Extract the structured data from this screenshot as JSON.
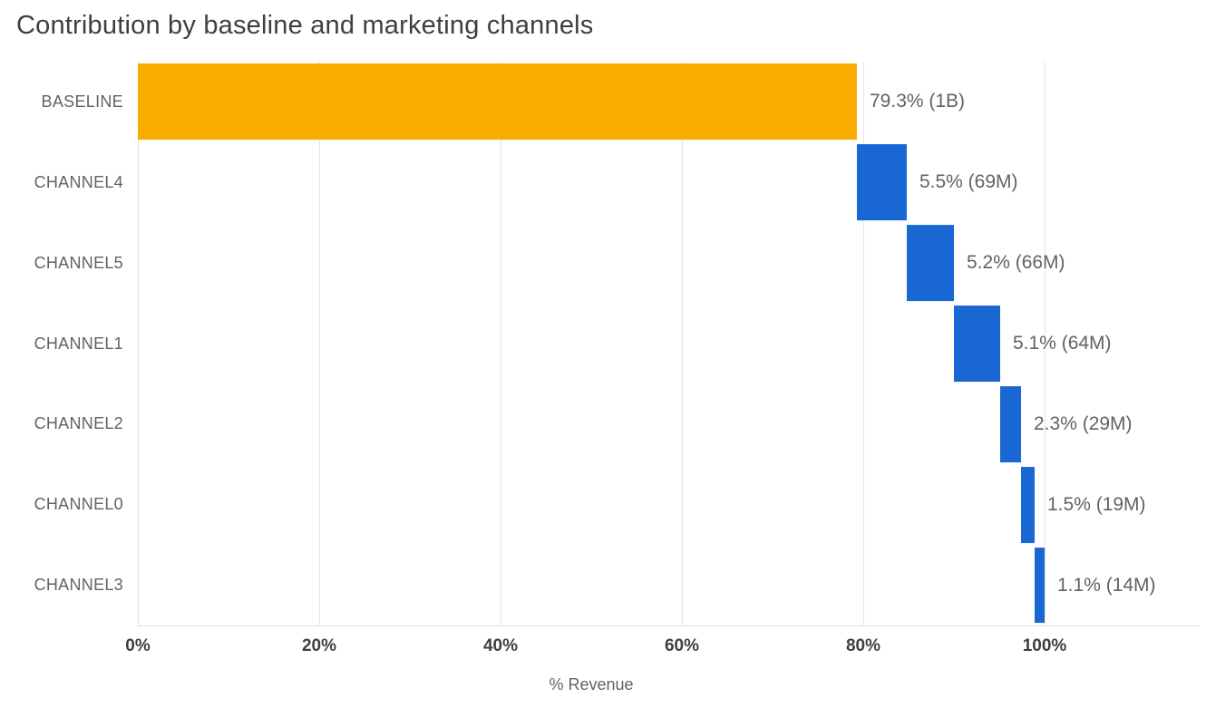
{
  "title": "Contribution by baseline and marketing channels",
  "chart_data": {
    "type": "bar",
    "subtype": "waterfall",
    "orientation": "horizontal",
    "categories": [
      "BASELINE",
      "CHANNEL4",
      "CHANNEL5",
      "CHANNEL1",
      "CHANNEL2",
      "CHANNEL0",
      "CHANNEL3"
    ],
    "values": [
      79.3,
      5.5,
      5.2,
      5.1,
      2.3,
      1.5,
      1.1
    ],
    "bar_labels": [
      "79.3% (1B)",
      "5.5% (69M)",
      "5.2% (66M)",
      "5.1% (64M)",
      "2.3% (29M)",
      "1.5% (19M)",
      "1.1% (14M)"
    ],
    "cumulative_start": [
      0,
      79.3,
      84.8,
      90.0,
      95.1,
      97.4,
      98.9
    ],
    "title": "Contribution by baseline and marketing channels",
    "xlabel": "% Revenue",
    "ylabel": "",
    "x_ticks": [
      "0%",
      "20%",
      "40%",
      "60%",
      "80%",
      "100%"
    ],
    "x_tick_values": [
      0,
      20,
      40,
      60,
      80,
      100
    ],
    "xlim": [
      0,
      117
    ],
    "grid": true,
    "legend": "none",
    "colors": {
      "baseline": "#F9AB00",
      "channel": "#1967D2",
      "gridline": "#e2e5e9",
      "text": "#5f6368",
      "tick_text": "#3c4043"
    }
  }
}
